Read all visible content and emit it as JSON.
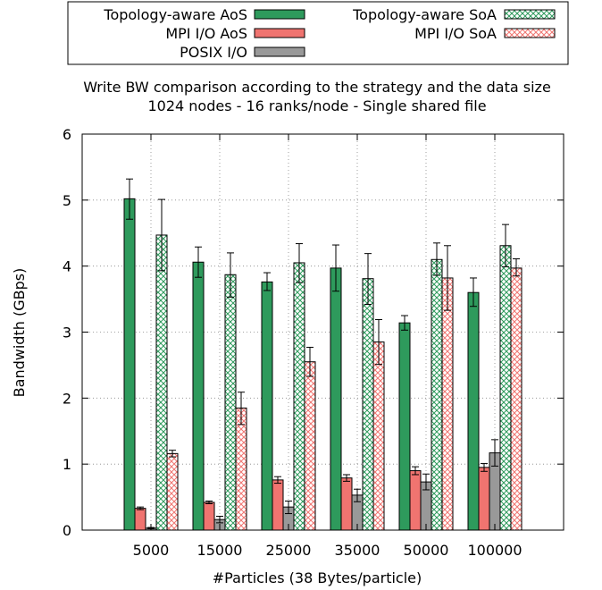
{
  "chart_data": {
    "type": "bar",
    "title": "Write BW comparison according to the strategy and the data size",
    "subtitle": "1024 nodes - 16 ranks/node - Single shared file",
    "xlabel": "#Particles (38 Bytes/particle)",
    "ylabel": "Bandwidth (GBps)",
    "ylim": [
      0,
      6
    ],
    "yticks": [
      0,
      1,
      2,
      3,
      4,
      5,
      6
    ],
    "grid": true,
    "legend_position": "top",
    "categories": [
      "5000",
      "15000",
      "25000",
      "35000",
      "50000",
      "100000"
    ],
    "series": [
      {
        "name": "Topology-aware AoS",
        "color": "#2e9a5c",
        "pattern": "solid",
        "values": [
          5.02,
          4.06,
          3.76,
          3.97,
          3.14,
          3.6
        ],
        "err_low": [
          4.71,
          3.83,
          3.63,
          3.62,
          3.03,
          3.39
        ],
        "err_high": [
          5.32,
          4.29,
          3.9,
          4.32,
          3.25,
          3.82
        ]
      },
      {
        "name": "MPI I/O AoS",
        "color": "#f07470",
        "pattern": "solid",
        "values": [
          0.33,
          0.42,
          0.76,
          0.79,
          0.9,
          0.95
        ],
        "err_low": [
          0.31,
          0.4,
          0.71,
          0.74,
          0.84,
          0.89
        ],
        "err_high": [
          0.35,
          0.44,
          0.81,
          0.84,
          0.96,
          1.01
        ]
      },
      {
        "name": "POSIX I/O",
        "color": "#999999",
        "pattern": "solid",
        "values": [
          0.03,
          0.16,
          0.35,
          0.53,
          0.73,
          1.17
        ],
        "err_low": [
          0.02,
          0.11,
          0.25,
          0.43,
          0.61,
          0.97
        ],
        "err_high": [
          0.04,
          0.21,
          0.44,
          0.62,
          0.85,
          1.37
        ]
      },
      {
        "name": "Topology-aware SoA",
        "color": "#2e9a5c",
        "pattern": "cross",
        "values": [
          4.47,
          3.87,
          4.05,
          3.81,
          4.1,
          4.31
        ],
        "err_low": [
          3.93,
          3.53,
          3.75,
          3.42,
          3.86,
          3.99
        ],
        "err_high": [
          5.01,
          4.2,
          4.34,
          4.19,
          4.35,
          4.63
        ]
      },
      {
        "name": "MPI I/O SoA",
        "color": "#f07470",
        "pattern": "cross",
        "values": [
          1.16,
          1.85,
          2.55,
          2.85,
          3.82,
          3.97
        ],
        "err_low": [
          1.11,
          1.6,
          2.33,
          2.51,
          3.33,
          3.85
        ],
        "err_high": [
          1.21,
          2.09,
          2.77,
          3.19,
          4.31,
          4.11
        ]
      }
    ]
  }
}
